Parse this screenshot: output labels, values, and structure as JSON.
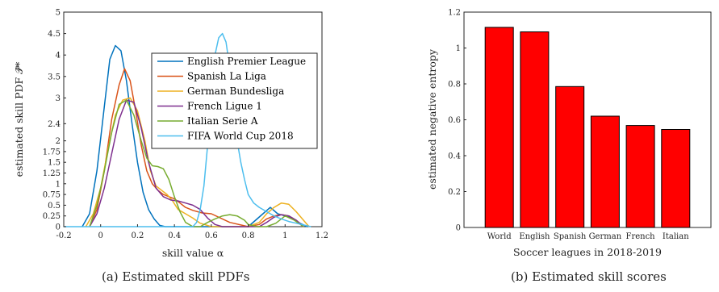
{
  "captions": {
    "left": "(a) Estimated skill PDFs",
    "right": "(b) Estimated skill scores"
  },
  "chart_data": [
    {
      "type": "line",
      "title": "",
      "xlabel": "skill value α",
      "ylabel": "estimated skill PDF 𝒫̂*",
      "xlim": [
        -0.2,
        1.2
      ],
      "ylim": [
        0,
        5
      ],
      "xticks": [
        -0.2,
        0,
        0.2,
        0.4,
        0.6,
        0.8,
        1,
        1.2
      ],
      "xtick_labels": [
        "-0.2",
        "0",
        "0.2",
        "0.4",
        "0.6",
        "0.8",
        "1",
        "1.2"
      ],
      "yticks": [
        0,
        0.25,
        0.5,
        0.75,
        1,
        1.25,
        1.5,
        1.75,
        2,
        2.4,
        3,
        3.5,
        4,
        4.5,
        5
      ],
      "ytick_labels": [
        "0",
        "0.25",
        "0.5",
        "0.75",
        "1",
        "1.25",
        "1.5",
        "1.75",
        "2",
        "2.4",
        "3",
        "3.5",
        "4",
        "4.5",
        "5"
      ],
      "grid": false,
      "legend_position": "top-right",
      "series": [
        {
          "name": "English Premier League",
          "color": "#0072BD",
          "x": [
            -0.1,
            -0.06,
            -0.02,
            0.02,
            0.05,
            0.08,
            0.11,
            0.14,
            0.17,
            0.2,
            0.23,
            0.26,
            0.29,
            0.32,
            0.35,
            0.4,
            0.5,
            0.6,
            0.7,
            0.8,
            0.88,
            0.92,
            0.96,
            1.0,
            1.04,
            1.08,
            1.12
          ],
          "y": [
            0,
            0.3,
            1.3,
            2.8,
            3.9,
            4.22,
            4.1,
            3.4,
            2.4,
            1.5,
            0.8,
            0.4,
            0.18,
            0.03,
            0,
            0,
            0,
            0,
            0,
            0,
            0.3,
            0.45,
            0.3,
            0.25,
            0.2,
            0.08,
            0
          ]
        },
        {
          "name": "Spanish La Liga",
          "color": "#D95319",
          "x": [
            -0.06,
            -0.02,
            0.02,
            0.06,
            0.1,
            0.13,
            0.16,
            0.19,
            0.22,
            0.25,
            0.28,
            0.31,
            0.34,
            0.37,
            0.4,
            0.43,
            0.46,
            0.5,
            0.55,
            0.6,
            0.7,
            0.8,
            0.86,
            0.9,
            0.94,
            0.98,
            1.02,
            1.06,
            1.1
          ],
          "y": [
            0,
            0.4,
            1.3,
            2.5,
            3.3,
            3.68,
            3.4,
            2.7,
            1.9,
            1.3,
            1.0,
            0.85,
            0.75,
            0.7,
            0.65,
            0.55,
            0.45,
            0.38,
            0.32,
            0.3,
            0.1,
            0,
            0.05,
            0.18,
            0.25,
            0.28,
            0.25,
            0.15,
            0
          ]
        },
        {
          "name": "German Bundesliga",
          "color": "#EDB120",
          "x": [
            -0.08,
            -0.04,
            0,
            0.04,
            0.08,
            0.12,
            0.16,
            0.2,
            0.24,
            0.27,
            0.3,
            0.33,
            0.36,
            0.39,
            0.42,
            0.46,
            0.5,
            0.54,
            0.6,
            0.7,
            0.8,
            0.86,
            0.9,
            0.94,
            0.98,
            1.02,
            1.06,
            1.1,
            1.13
          ],
          "y": [
            0,
            0.3,
            0.9,
            1.8,
            2.6,
            2.95,
            3.0,
            2.7,
            2.0,
            1.3,
            0.95,
            0.85,
            0.75,
            0.6,
            0.4,
            0.3,
            0.2,
            0.08,
            0,
            0,
            0,
            0.1,
            0.3,
            0.45,
            0.55,
            0.52,
            0.35,
            0.15,
            0
          ]
        },
        {
          "name": "French Ligue 1",
          "color": "#7E2F8E",
          "x": [
            -0.06,
            -0.02,
            0.02,
            0.06,
            0.1,
            0.14,
            0.18,
            0.22,
            0.26,
            0.3,
            0.34,
            0.38,
            0.42,
            0.46,
            0.5,
            0.54,
            0.58,
            0.62,
            0.66,
            0.7,
            0.74,
            0.78,
            0.82,
            0.86,
            0.9,
            0.94,
            0.98,
            1.02,
            1.06,
            1.1
          ],
          "y": [
            0,
            0.3,
            0.9,
            1.7,
            2.5,
            2.95,
            2.9,
            2.3,
            1.5,
            0.9,
            0.7,
            0.62,
            0.6,
            0.55,
            0.5,
            0.4,
            0.2,
            0.05,
            0,
            0,
            0,
            0,
            0,
            0,
            0.1,
            0.22,
            0.28,
            0.25,
            0.15,
            0
          ]
        },
        {
          "name": "Italian Serie A",
          "color": "#77AC30",
          "x": [
            -0.06,
            -0.02,
            0.02,
            0.06,
            0.1,
            0.14,
            0.18,
            0.22,
            0.25,
            0.28,
            0.31,
            0.34,
            0.37,
            0.4,
            0.43,
            0.46,
            0.5,
            0.54,
            0.58,
            0.62,
            0.66,
            0.7,
            0.74,
            0.78,
            0.8,
            0.85,
            0.9,
            0.95,
            1.0,
            1.05,
            1.1
          ],
          "y": [
            0,
            0.5,
            1.3,
            2.2,
            2.85,
            2.95,
            2.6,
            2.0,
            1.6,
            1.42,
            1.4,
            1.35,
            1.1,
            0.7,
            0.35,
            0.1,
            0,
            0,
            0.1,
            0.18,
            0.25,
            0.28,
            0.25,
            0.15,
            0.05,
            0,
            0,
            0.08,
            0.25,
            0.15,
            0
          ]
        },
        {
          "name": "FIFA World Cup 2018",
          "color": "#4DBEEE",
          "x": [
            -0.2,
            0.5,
            0.52,
            0.54,
            0.56,
            0.58,
            0.6,
            0.62,
            0.64,
            0.66,
            0.68,
            0.7,
            0.72,
            0.74,
            0.76,
            0.78,
            0.8,
            0.83,
            0.86,
            0.9,
            0.94,
            0.98,
            1.02,
            1.06,
            1.1,
            1.14
          ],
          "y": [
            0,
            0,
            0.1,
            0.4,
            0.95,
            1.9,
            3.1,
            4.0,
            4.4,
            4.5,
            4.3,
            3.7,
            2.8,
            2.0,
            1.5,
            1.1,
            0.75,
            0.55,
            0.45,
            0.35,
            0.25,
            0.18,
            0.12,
            0.08,
            0.04,
            0
          ]
        }
      ]
    },
    {
      "type": "bar",
      "title": "",
      "xlabel": "Soccer leagues in 2018-2019",
      "ylabel": "estimated negative entropy",
      "categories": [
        "World",
        "English",
        "Spanish",
        "German",
        "French",
        "Italian"
      ],
      "values": [
        1.115,
        1.09,
        0.785,
        0.62,
        0.568,
        0.546
      ],
      "ylim": [
        0,
        1.2
      ],
      "yticks": [
        0,
        0.2,
        0.4,
        0.6,
        0.8,
        1,
        1.2
      ],
      "ytick_labels": [
        "0",
        "0.2",
        "0.4",
        "0.6",
        "0.8",
        "1",
        "1.2"
      ],
      "bar_color": "#FF0000",
      "grid": false
    }
  ]
}
